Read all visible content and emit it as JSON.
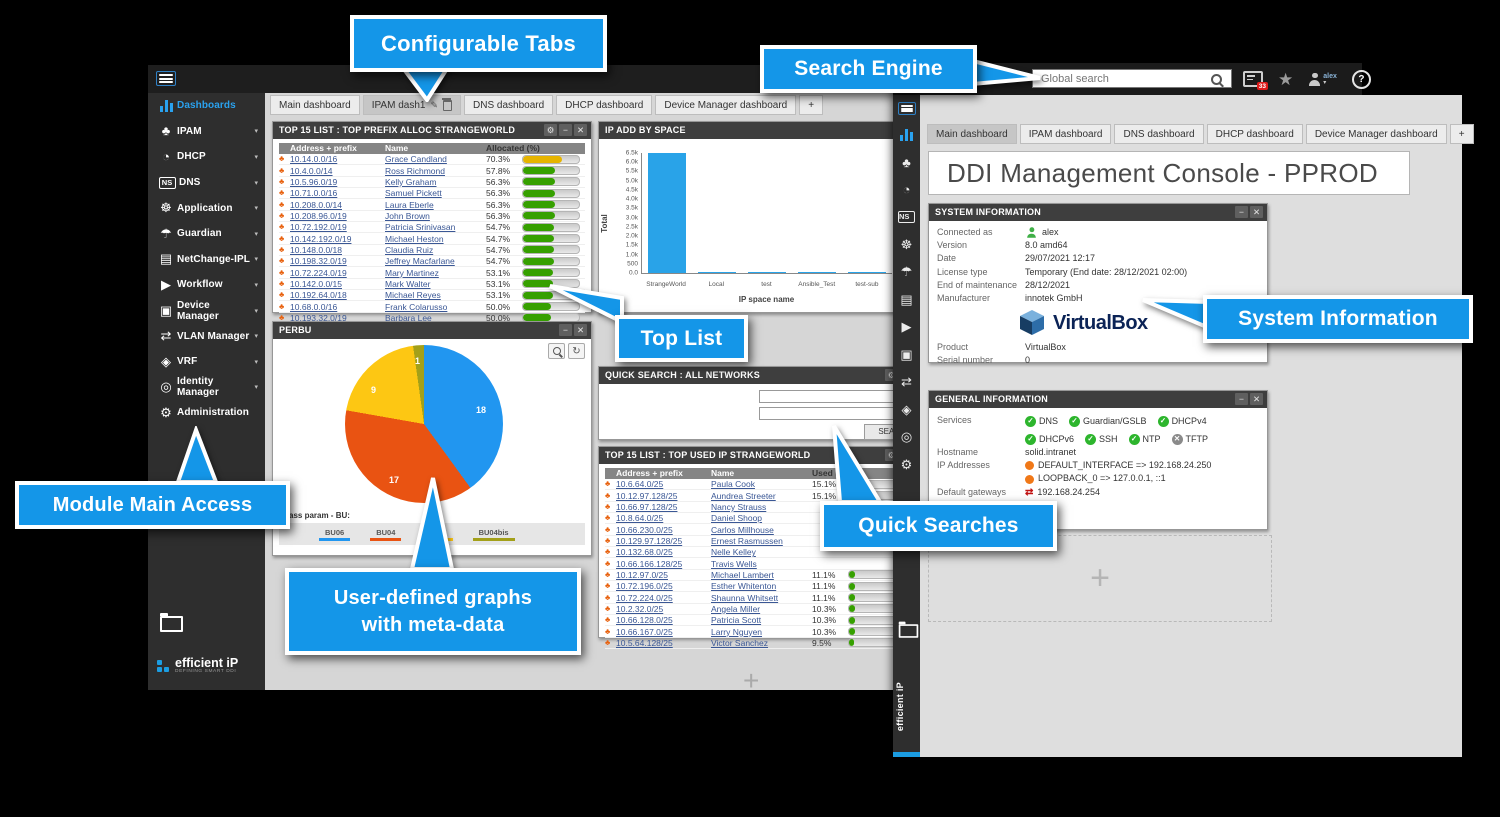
{
  "callouts": {
    "configurable_tabs": "Configurable Tabs",
    "search_engine": "Search Engine",
    "system_information": "System Information",
    "top_list": "Top List",
    "module_main_access": "Module Main Access",
    "user_defined_graphs_line1": "User-defined graphs",
    "user_defined_graphs_line2": "with meta-data",
    "quick_searches": "Quick Searches"
  },
  "colors": {
    "accent_blue": "#1496e8",
    "bar_green": "#36a000",
    "bar_yellow": "#e6b400",
    "chart_bar_blue": "#29a3e8"
  },
  "sidebar": {
    "items": [
      {
        "label": "Dashboards",
        "icon": "dashboards-icon",
        "active": true,
        "caret": false
      },
      {
        "label": "IPAM",
        "icon": "ipam-icon",
        "caret": true
      },
      {
        "label": "DHCP",
        "icon": "dhcp-icon",
        "caret": true
      },
      {
        "label": "DNS",
        "icon": "dns-icon",
        "caret": true
      },
      {
        "label": "Application",
        "icon": "application-icon",
        "caret": true
      },
      {
        "label": "Guardian",
        "icon": "guardian-icon",
        "caret": true
      },
      {
        "label": "NetChange-IPL",
        "icon": "netchange-icon",
        "caret": true
      },
      {
        "label": "Workflow",
        "icon": "workflow-icon",
        "caret": true
      },
      {
        "label": "Device Manager",
        "icon": "device-manager-icon",
        "caret": true
      },
      {
        "label": "VLAN Manager",
        "icon": "vlan-manager-icon",
        "caret": true
      },
      {
        "label": "VRF",
        "icon": "vrf-icon",
        "caret": true
      },
      {
        "label": "Identity Manager",
        "icon": "identity-manager-icon",
        "caret": true
      },
      {
        "label": "Administration",
        "icon": "administration-icon",
        "caret": false
      }
    ],
    "logo_name": "efficient iP",
    "logo_tagline": "DEFINING SMART DDI"
  },
  "left_window": {
    "tabs": [
      {
        "label": "Main dashboard"
      },
      {
        "label": "IPAM dash1",
        "active": true,
        "editable": true
      },
      {
        "label": "DNS dashboard"
      },
      {
        "label": "DHCP dashboard"
      },
      {
        "label": "Device Manager dashboard"
      },
      {
        "label": "+",
        "plus": true
      }
    ],
    "top_prefix_table": {
      "title": "TOP 15 LIST : TOP PREFIX ALLOC STRANGEWORLD",
      "columns": [
        "Address + prefix",
        "Name",
        "Allocated (%)"
      ],
      "rows": [
        {
          "addr": "10.14.0.0/16",
          "name": "Grace Candland",
          "pct": 70.3,
          "color": "yellow"
        },
        {
          "addr": "10.4.0.0/14",
          "name": "Ross Richmond",
          "pct": 57.8,
          "color": "green"
        },
        {
          "addr": "10.5.96.0/19",
          "name": "Kelly Graham",
          "pct": 56.3,
          "color": "green"
        },
        {
          "addr": "10.71.0.0/16",
          "name": "Samuel Pickett",
          "pct": 56.3,
          "color": "green"
        },
        {
          "addr": "10.208.0.0/14",
          "name": "Laura Eberle",
          "pct": 56.3,
          "color": "green"
        },
        {
          "addr": "10.208.96.0/19",
          "name": "John Brown",
          "pct": 56.3,
          "color": "green"
        },
        {
          "addr": "10.72.192.0/19",
          "name": "Patricia Srinivasan",
          "pct": 54.7,
          "color": "green"
        },
        {
          "addr": "10.142.192.0/19",
          "name": "Michael Heston",
          "pct": 54.7,
          "color": "green"
        },
        {
          "addr": "10.148.0.0/18",
          "name": "Claudia Ruiz",
          "pct": 54.7,
          "color": "green"
        },
        {
          "addr": "10.198.32.0/19",
          "name": "Jeffrey Macfarlane",
          "pct": 54.7,
          "color": "green"
        },
        {
          "addr": "10.72.224.0/19",
          "name": "Mary Martinez",
          "pct": 53.1,
          "color": "green"
        },
        {
          "addr": "10.142.0.0/15",
          "name": "Mark Walter",
          "pct": 53.1,
          "color": "green"
        },
        {
          "addr": "10.192.64.0/18",
          "name": "Michael Reyes",
          "pct": 53.1,
          "color": "green"
        },
        {
          "addr": "10.68.0.0/16",
          "name": "Frank Colarusso",
          "pct": 50.0,
          "color": "green"
        },
        {
          "addr": "10.193.32.0/19",
          "name": "Barbara Lee",
          "pct": 50.0,
          "color": "green"
        }
      ]
    },
    "top_used_table": {
      "title": "TOP 15 LIST : TOP USED IP STRANGEWORLD",
      "columns": [
        "Address + prefix",
        "Name",
        "Used (%)"
      ],
      "rows": [
        {
          "addr": "10.6.64.0/25",
          "name": "Paula Cook",
          "pct": 15.1,
          "color": "green"
        },
        {
          "addr": "10.12.97.128/25",
          "name": "Aundrea Streeter",
          "pct": 15.1,
          "color": "green"
        },
        {
          "addr": "10.66.97.128/25",
          "name": "Nancy Strauss",
          "pct": null
        },
        {
          "addr": "10.8.64.0/25",
          "name": "Daniel Shoop",
          "pct": null
        },
        {
          "addr": "10.66.230.0/25",
          "name": "Carlos Millhouse",
          "pct": null
        },
        {
          "addr": "10.129.97.128/25",
          "name": "Ernest Rasmussen",
          "pct": null
        },
        {
          "addr": "10.132.68.0/25",
          "name": "Nelle Kelley",
          "pct": null
        },
        {
          "addr": "10.66.166.128/25",
          "name": "Travis Wells",
          "pct": null
        },
        {
          "addr": "10.12.97.0/25",
          "name": "Michael Lambert",
          "pct": 11.1,
          "color": "green"
        },
        {
          "addr": "10.72.196.0/25",
          "name": "Esther Whitenton",
          "pct": 11.1,
          "color": "green"
        },
        {
          "addr": "10.72.224.0/25",
          "name": "Shaunna Whitsett",
          "pct": 11.1,
          "color": "green"
        },
        {
          "addr": "10.2.32.0/25",
          "name": "Angela Miller",
          "pct": 10.3,
          "color": "green"
        },
        {
          "addr": "10.66.128.0/25",
          "name": "Patricia Scott",
          "pct": 10.3,
          "color": "green"
        },
        {
          "addr": "10.66.167.0/25",
          "name": "Larry Nguyen",
          "pct": 10.3,
          "color": "green"
        },
        {
          "addr": "10.5.64.128/25",
          "name": "Victor Sanchez",
          "pct": 9.5,
          "color": "green"
        }
      ]
    },
    "quick_search": {
      "title": "QUICK SEARCH : ALL NETWORKS",
      "button": "SEARCH"
    },
    "perbu_title": "PERBU",
    "ip_add_title": "IP ADD BY SPACE",
    "plus_placeholder": "+"
  },
  "right_window": {
    "topbar": {
      "search_placeholder": "Global search",
      "notifications_badge": "33",
      "username": "alex",
      "help_label": "?"
    },
    "tabs": [
      {
        "label": "Main dashboard",
        "active": true
      },
      {
        "label": "IPAM dashboard"
      },
      {
        "label": "DNS dashboard"
      },
      {
        "label": "DHCP dashboard"
      },
      {
        "label": "Device Manager dashboard"
      },
      {
        "label": "+",
        "plus": true
      }
    ],
    "title": "DDI Management Console - PPROD",
    "system_information": {
      "title": "SYSTEM INFORMATION",
      "rows": [
        {
          "label": "Connected as",
          "value": "alex",
          "icon": "user-icon-green"
        },
        {
          "label": "Version",
          "value": "8.0 amd64"
        },
        {
          "label": "Date",
          "value": "29/07/2021 12:17"
        },
        {
          "label": "License type",
          "value": "Temporary (End date: 28/12/2021 02:00)"
        },
        {
          "label": "End of maintenance",
          "value": "28/12/2021"
        },
        {
          "label": "Manufacturer",
          "value": "innotek GmbH"
        }
      ],
      "logo_text": "VirtualBox",
      "product_rows": [
        {
          "label": "Product",
          "value": "VirtualBox"
        },
        {
          "label": "Serial number",
          "value": "0"
        }
      ]
    },
    "general_information": {
      "title": "GENERAL INFORMATION",
      "services_label": "Services",
      "services": [
        {
          "label": "DNS",
          "status": "ok"
        },
        {
          "label": "Guardian/GSLB",
          "status": "ok"
        },
        {
          "label": "DHCPv4",
          "status": "ok"
        },
        {
          "label": "DHCPv6",
          "status": "ok"
        },
        {
          "label": "SSH",
          "status": "ok"
        },
        {
          "label": "NTP",
          "status": "ok"
        },
        {
          "label": "TFTP",
          "status": "off"
        }
      ],
      "hostname_label": "Hostname",
      "hostname": "solid.intranet",
      "ip_label": "IP Addresses",
      "ips": [
        "DEFAULT_INTERFACE => 192.168.24.250",
        "LOOPBACK_0 => 127.0.0.1, ::1"
      ],
      "gateway_label": "Default gateways",
      "gateway": "192.168.24.254"
    },
    "plus_placeholder": "+"
  },
  "chart_data": [
    {
      "type": "bar",
      "title": "IP ADD BY SPACE",
      "categories": [
        "StrangeWorld",
        "Local",
        "test",
        "Ansible_Test",
        "test-sub"
      ],
      "values": [
        6500,
        60,
        15,
        10,
        10
      ],
      "xlabel": "IP space name",
      "ylabel": "Total",
      "ylim": [
        0,
        6500
      ],
      "ytick_labels": [
        "0.0",
        "500",
        "1.0k",
        "1.5k",
        "2.0k",
        "2.5k",
        "3.0k",
        "3.5k",
        "4.0k",
        "4.5k",
        "5.0k",
        "5.5k",
        "6.0k",
        "6.5k"
      ],
      "ytick_values": [
        0,
        500,
        1000,
        1500,
        2000,
        2500,
        3000,
        3500,
        4000,
        4500,
        5000,
        5500,
        6000,
        6500
      ],
      "bar_color": "#29a3e8",
      "legend_position": "none",
      "grid": false
    },
    {
      "type": "pie",
      "title": "PERBU",
      "legend_label": "Class param - BU:",
      "slices": [
        {
          "label": "BU06",
          "value": 18,
          "color": "#2196f0"
        },
        {
          "label": "BU04",
          "value": 17,
          "color": "#e95312"
        },
        {
          "label": "BU05",
          "value": 9,
          "color": "#fdc713"
        },
        {
          "label": "BU04bis",
          "value": 1,
          "color": "#a3a019"
        }
      ],
      "legend_position": "bottom"
    }
  ]
}
